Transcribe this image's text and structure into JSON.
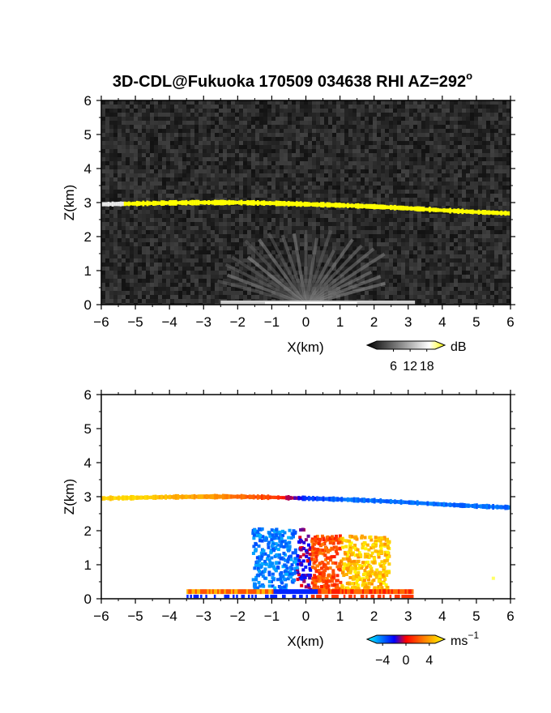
{
  "title": "3D-CDL@Fukuoka 170509 034638 RHI AZ=292",
  "title_suffix": "o",
  "chart_data": [
    {
      "type": "heatmap",
      "field": "reflectivity",
      "xlabel": "X(km)",
      "ylabel": "Z(km)",
      "xlim": [
        -6,
        6
      ],
      "ylim": [
        0,
        6
      ],
      "xticks": [
        -6,
        -5,
        -4,
        -3,
        -2,
        -1,
        0,
        1,
        2,
        3,
        4,
        5,
        6
      ],
      "yticks": [
        0,
        1,
        2,
        3,
        4,
        5,
        6
      ],
      "background": "#1e1e1e",
      "layer": {
        "x": [
          -6,
          -5,
          -4,
          -3,
          -2,
          -1,
          0,
          1,
          2,
          3,
          4,
          5,
          6
        ],
        "z": [
          2.95,
          2.97,
          2.99,
          3.0,
          3.0,
          2.98,
          2.95,
          2.92,
          2.88,
          2.83,
          2.77,
          2.72,
          2.68
        ],
        "thickness_km": 0.12,
        "color": "#ffff00"
      },
      "colorbar": {
        "label": "dB",
        "ticks": [
          6,
          12,
          18
        ],
        "range": [
          0,
          21
        ],
        "colors": [
          "#000000",
          "#ffffff",
          "#ffff00"
        ]
      }
    },
    {
      "type": "heatmap",
      "field": "doppler_velocity",
      "xlabel": "X(km)",
      "ylabel": "Z(km)",
      "xlim": [
        -6,
        6
      ],
      "ylim": [
        0,
        6
      ],
      "xticks": [
        -6,
        -5,
        -4,
        -3,
        -2,
        -1,
        0,
        1,
        2,
        3,
        4,
        5,
        6
      ],
      "yticks": [
        0,
        1,
        2,
        3,
        4,
        5,
        6
      ],
      "background": "#ffffff",
      "layer": {
        "x": [
          -6,
          -5,
          -4,
          -3,
          -2,
          -1,
          0,
          1,
          2,
          3,
          4,
          5,
          6
        ],
        "z": [
          2.95,
          2.97,
          2.99,
          3.0,
          3.0,
          2.98,
          2.95,
          2.92,
          2.88,
          2.83,
          2.77,
          2.72,
          2.68
        ],
        "v": [
          4,
          4,
          3.5,
          3,
          2,
          1,
          -2,
          -3,
          -3,
          -3,
          -3,
          -3,
          -3
        ],
        "thickness_km": 0.12
      },
      "colorbar": {
        "label": "ms",
        "label_exp": "−1",
        "ticks": [
          -4,
          0,
          4
        ],
        "tick_labels": [
          "−4",
          "0",
          "4"
        ],
        "range": [
          -5,
          5
        ],
        "colors": [
          "#00ffff",
          "#0000ff",
          "#ff0000",
          "#ffff00"
        ]
      }
    }
  ]
}
